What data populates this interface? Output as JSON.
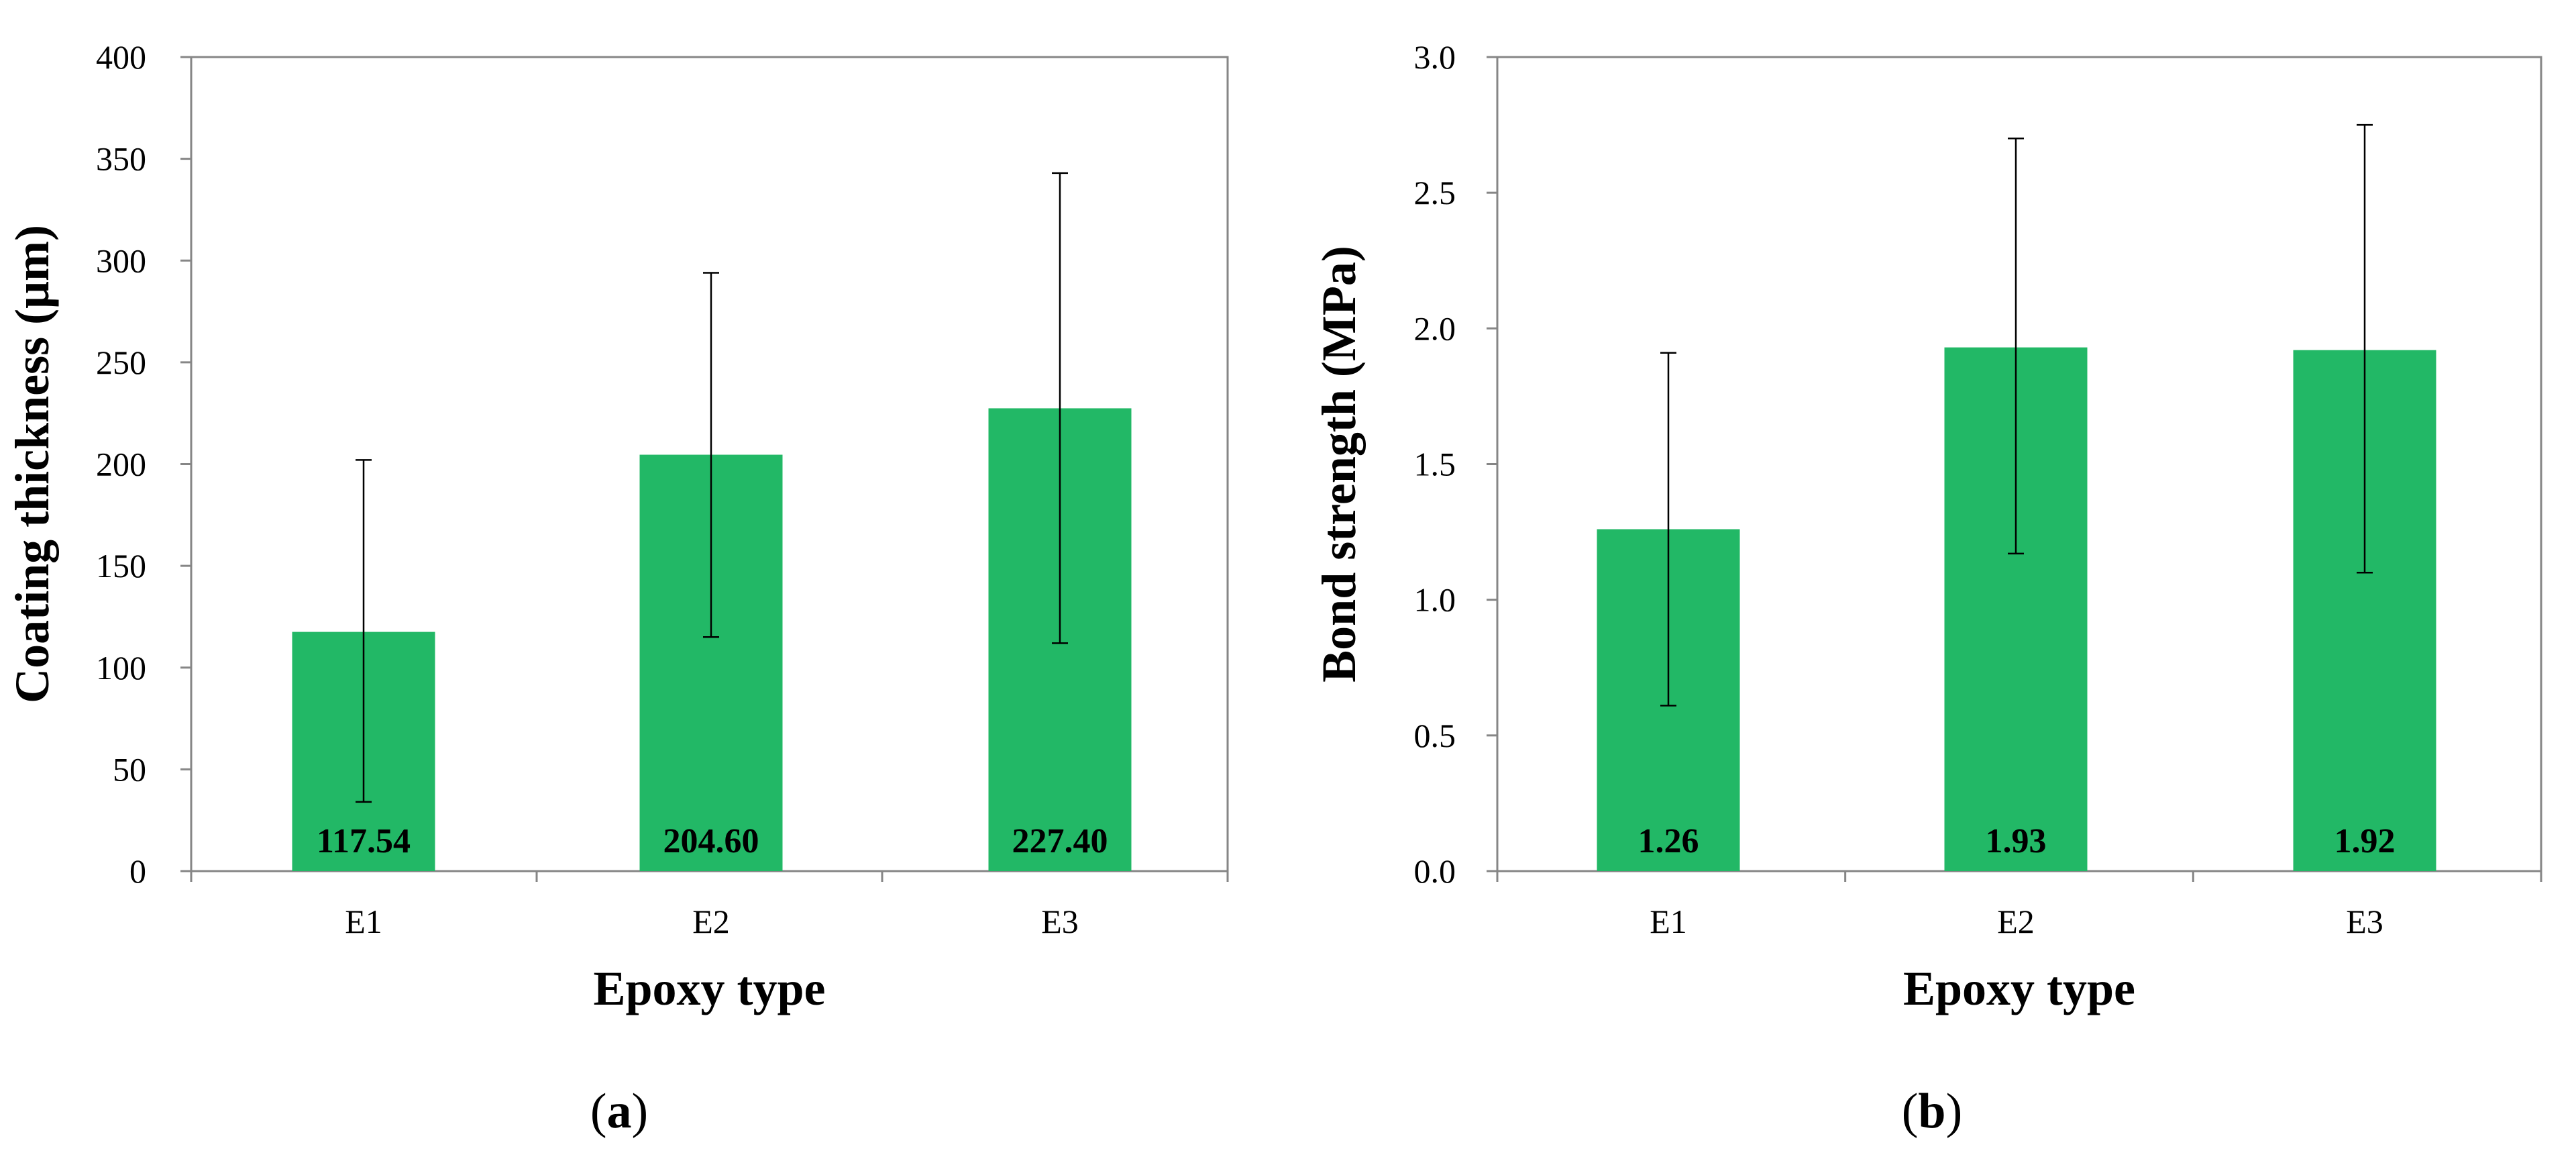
{
  "colors": {
    "bar": "#22b866",
    "axis": "#868686",
    "frame": "#868686",
    "text": "#000000",
    "errorbar": "#000000"
  },
  "chart_data": [
    {
      "type": "bar",
      "panel_label": "a",
      "categories": [
        "E1",
        "E2",
        "E3"
      ],
      "values": [
        117.54,
        204.6,
        227.4
      ],
      "value_labels": [
        "117.54",
        "204.60",
        "227.40"
      ],
      "error_upper": [
        202,
        294,
        343
      ],
      "error_lower": [
        34,
        115,
        112
      ],
      "xlabel": "Epoxy type",
      "ylabel": "Coating thickness (μm)",
      "ylim": [
        0,
        400
      ],
      "yticks": [
        0,
        50,
        100,
        150,
        200,
        250,
        300,
        350,
        400
      ],
      "ytick_labels": [
        "0",
        "50",
        "100",
        "150",
        "200",
        "250",
        "300",
        "350",
        "400"
      ],
      "grid": false
    },
    {
      "type": "bar",
      "panel_label": "b",
      "categories": [
        "E1",
        "E2",
        "E3"
      ],
      "values": [
        1.26,
        1.93,
        1.92
      ],
      "value_labels": [
        "1.26",
        "1.93",
        "1.92"
      ],
      "error_upper": [
        1.91,
        2.7,
        2.75
      ],
      "error_lower": [
        0.61,
        1.17,
        1.1
      ],
      "xlabel": "Epoxy type",
      "ylabel": "Bond strength (MPa)",
      "ylim": [
        0,
        3.0
      ],
      "yticks": [
        0,
        0.5,
        1.0,
        1.5,
        2.0,
        2.5,
        3.0
      ],
      "ytick_labels": [
        "0.0",
        "0.5",
        "1.0",
        "1.5",
        "2.0",
        "2.5",
        "3.0"
      ],
      "grid": false
    }
  ]
}
